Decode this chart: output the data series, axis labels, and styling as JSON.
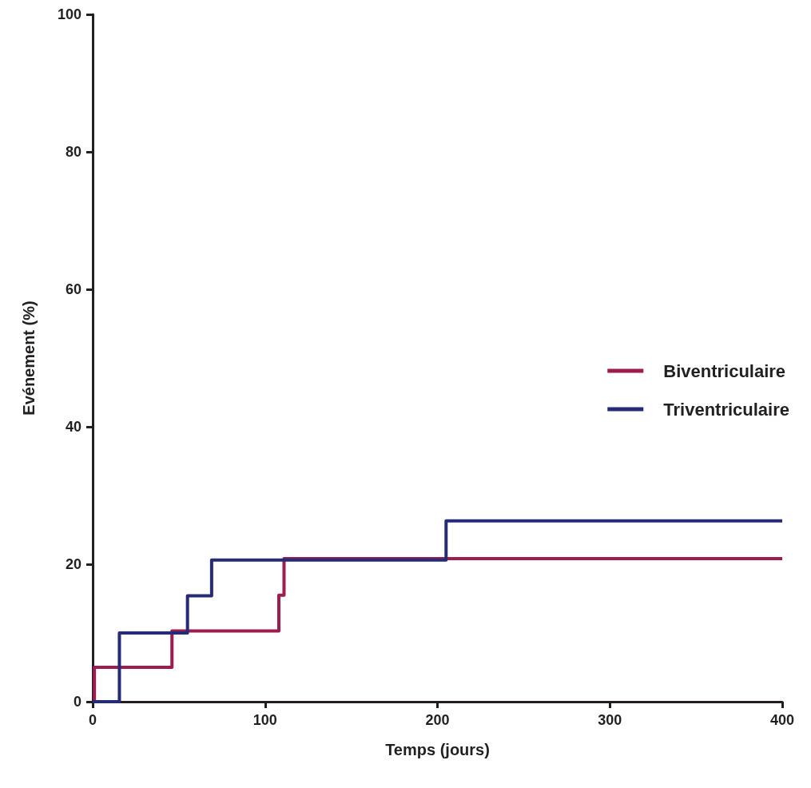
{
  "chart_data": {
    "type": "step",
    "xlabel": "Temps (jours)",
    "ylabel": "Evénement (%)",
    "xlim": [
      0,
      400
    ],
    "xticks": [
      0,
      100,
      200,
      300,
      400
    ],
    "ylim": [
      0,
      100
    ],
    "yticks": [
      0,
      20,
      40,
      60,
      80,
      100
    ],
    "grid": false,
    "legend": "right",
    "marker": "none",
    "line_style": "solid",
    "series": [
      {
        "name": "Biventriculaire",
        "color": "#9e1c4f",
        "x": [
          0,
          1,
          46,
          108,
          111,
          400
        ],
        "values": [
          0,
          5,
          10.3,
          15.5,
          20.8,
          20.8
        ]
      },
      {
        "name": "Triventriculaire",
        "color": "#262b75",
        "x": [
          0,
          15.5,
          55,
          69,
          205,
          400
        ],
        "values": [
          0,
          10,
          15.4,
          20.6,
          26.3,
          26.3
        ]
      }
    ]
  }
}
